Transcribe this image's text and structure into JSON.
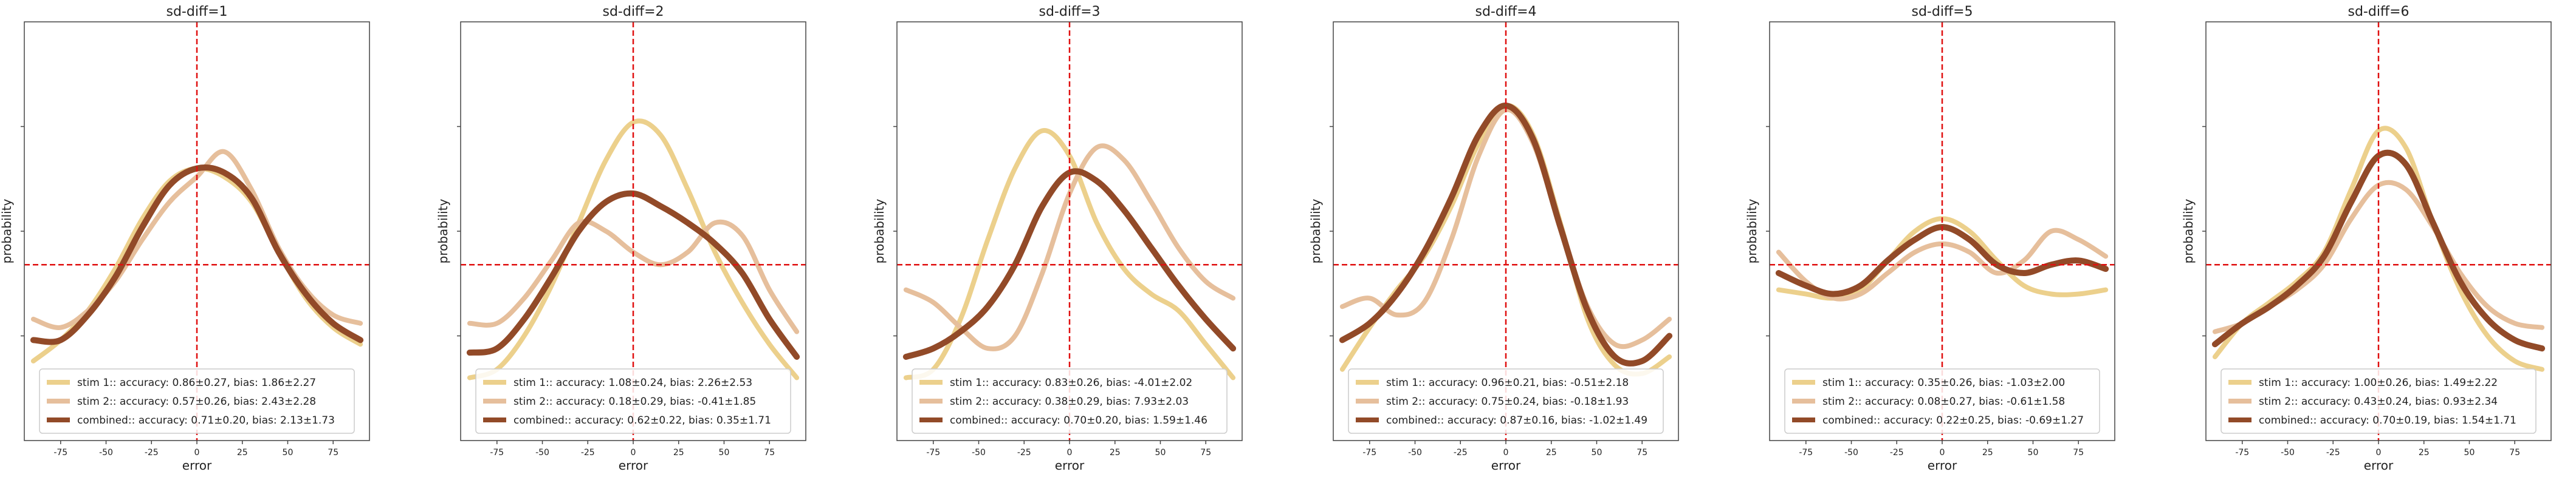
{
  "figure": {
    "colors": {
      "stim1": "#ecd08c",
      "stim2": "#e6bf9c",
      "combined": "#924a28",
      "reference": "#e01010",
      "axes": "#444444"
    }
  },
  "chart_data": [
    {
      "type": "line",
      "title": "sd-diff=1",
      "xlabel": "error",
      "ylabel": "probability",
      "xlim": [
        -95,
        95
      ],
      "x_ticks": [
        -75,
        -50,
        -25,
        0,
        25,
        50,
        75
      ],
      "ylim": [
        0,
        1
      ],
      "y_reference": 0.42,
      "x_reference": 0,
      "legend_position": "lower-center",
      "x": [
        -90,
        -75,
        -60,
        -45,
        -30,
        -15,
        0,
        15,
        30,
        45,
        60,
        75,
        90
      ],
      "series": [
        {
          "name": "stim 1:: accuracy: 0.86±0.27, bias: 1.86±2.27",
          "values": [
            0.19,
            0.24,
            0.31,
            0.41,
            0.53,
            0.62,
            0.65,
            0.63,
            0.57,
            0.45,
            0.34,
            0.27,
            0.23
          ]
        },
        {
          "name": "stim 2:: accuracy: 0.57±0.26, bias: 2.43±2.28",
          "values": [
            0.29,
            0.27,
            0.31,
            0.38,
            0.48,
            0.57,
            0.63,
            0.69,
            0.6,
            0.46,
            0.36,
            0.3,
            0.28
          ]
        },
        {
          "name": "combined:: accuracy: 0.71±0.20, bias: 2.13±1.73",
          "values": [
            0.24,
            0.24,
            0.3,
            0.39,
            0.51,
            0.61,
            0.65,
            0.64,
            0.58,
            0.45,
            0.35,
            0.28,
            0.24
          ]
        }
      ]
    },
    {
      "type": "line",
      "title": "sd-diff=2",
      "xlabel": "error",
      "ylabel": "probability",
      "xlim": [
        -95,
        95
      ],
      "x_ticks": [
        -75,
        -50,
        -25,
        0,
        25,
        50,
        75
      ],
      "ylim": [
        0,
        1
      ],
      "y_reference": 0.42,
      "x_reference": 0,
      "legend_position": "lower-center",
      "x": [
        -90,
        -75,
        -60,
        -45,
        -30,
        -15,
        0,
        15,
        30,
        45,
        60,
        75,
        90
      ],
      "series": [
        {
          "name": "stim 1:: accuracy: 1.08±0.24, bias: 2.26±2.53",
          "values": [
            0.15,
            0.17,
            0.25,
            0.37,
            0.52,
            0.67,
            0.76,
            0.73,
            0.6,
            0.45,
            0.33,
            0.23,
            0.15
          ]
        },
        {
          "name": "stim 2:: accuracy: 0.18±0.29, bias: -0.41±1.85",
          "values": [
            0.28,
            0.28,
            0.34,
            0.43,
            0.52,
            0.5,
            0.45,
            0.42,
            0.45,
            0.52,
            0.49,
            0.36,
            0.26
          ]
        },
        {
          "name": "combined:: accuracy: 0.62±0.22, bias: 0.35±1.71",
          "values": [
            0.21,
            0.22,
            0.29,
            0.39,
            0.5,
            0.57,
            0.59,
            0.56,
            0.52,
            0.47,
            0.4,
            0.29,
            0.2
          ]
        }
      ]
    },
    {
      "type": "line",
      "title": "sd-diff=3",
      "xlabel": "error",
      "ylabel": "probability",
      "xlim": [
        -95,
        95
      ],
      "x_ticks": [
        -75,
        -50,
        -25,
        0,
        25,
        50,
        75
      ],
      "ylim": [
        0,
        1
      ],
      "y_reference": 0.42,
      "x_reference": 0,
      "legend_position": "lower-center",
      "x": [
        -90,
        -75,
        -60,
        -45,
        -30,
        -15,
        0,
        15,
        30,
        45,
        60,
        75,
        90
      ],
      "series": [
        {
          "name": "stim 1:: accuracy: 0.83±0.26, bias: -4.01±2.02",
          "values": [
            0.15,
            0.17,
            0.29,
            0.48,
            0.65,
            0.74,
            0.68,
            0.52,
            0.41,
            0.35,
            0.31,
            0.23,
            0.15
          ]
        },
        {
          "name": "stim 2:: accuracy: 0.38±0.29, bias: 7.93±2.03",
          "values": [
            0.36,
            0.33,
            0.27,
            0.22,
            0.25,
            0.4,
            0.59,
            0.7,
            0.67,
            0.57,
            0.46,
            0.38,
            0.34
          ]
        },
        {
          "name": "combined:: accuracy: 0.70±0.20, bias: 1.59±1.46",
          "values": [
            0.2,
            0.22,
            0.26,
            0.32,
            0.42,
            0.56,
            0.64,
            0.62,
            0.55,
            0.46,
            0.37,
            0.29,
            0.22
          ]
        }
      ]
    },
    {
      "type": "line",
      "title": "sd-diff=4",
      "xlabel": "error",
      "ylabel": "probability",
      "xlim": [
        -95,
        95
      ],
      "x_ticks": [
        -75,
        -50,
        -25,
        0,
        25,
        50,
        75
      ],
      "ylim": [
        0,
        1
      ],
      "y_reference": 0.42,
      "x_reference": 0,
      "legend_position": "lower-center",
      "x": [
        -90,
        -75,
        -60,
        -45,
        -30,
        -15,
        0,
        15,
        30,
        45,
        60,
        75,
        90
      ],
      "series": [
        {
          "name": "stim 1:: accuracy: 0.96±0.21, bias: -0.51±2.18",
          "values": [
            0.17,
            0.27,
            0.36,
            0.44,
            0.56,
            0.71,
            0.8,
            0.73,
            0.52,
            0.29,
            0.18,
            0.16,
            0.2
          ]
        },
        {
          "name": "stim 2:: accuracy: 0.75±0.24, bias: -0.18±1.93",
          "values": [
            0.32,
            0.34,
            0.3,
            0.33,
            0.48,
            0.68,
            0.79,
            0.71,
            0.51,
            0.32,
            0.23,
            0.24,
            0.29
          ]
        },
        {
          "name": "combined:: accuracy: 0.87±0.16, bias: -1.02±1.49",
          "values": [
            0.24,
            0.28,
            0.35,
            0.45,
            0.58,
            0.73,
            0.8,
            0.72,
            0.51,
            0.31,
            0.2,
            0.19,
            0.25
          ]
        }
      ]
    },
    {
      "type": "line",
      "title": "sd-diff=5",
      "xlabel": "error",
      "ylabel": "probability",
      "xlim": [
        -95,
        95
      ],
      "x_ticks": [
        -75,
        -50,
        -25,
        0,
        25,
        50,
        75
      ],
      "ylim": [
        0,
        1
      ],
      "y_reference": 0.42,
      "x_reference": 0,
      "legend_position": "lower-center",
      "x": [
        -90,
        -75,
        -60,
        -45,
        -30,
        -15,
        0,
        15,
        30,
        45,
        60,
        75,
        90
      ],
      "series": [
        {
          "name": "stim 1:: accuracy: 0.35±0.26, bias: -1.03±2.00",
          "values": [
            0.36,
            0.35,
            0.34,
            0.36,
            0.43,
            0.5,
            0.53,
            0.5,
            0.43,
            0.37,
            0.35,
            0.35,
            0.36
          ]
        },
        {
          "name": "stim 2:: accuracy: 0.08±0.27, bias: -0.61±1.58",
          "values": [
            0.45,
            0.38,
            0.34,
            0.35,
            0.4,
            0.45,
            0.47,
            0.45,
            0.4,
            0.43,
            0.5,
            0.48,
            0.44
          ]
        },
        {
          "name": "combined:: accuracy: 0.22±0.25, bias: -0.69±1.27",
          "values": [
            0.4,
            0.37,
            0.35,
            0.37,
            0.43,
            0.48,
            0.51,
            0.48,
            0.42,
            0.4,
            0.42,
            0.43,
            0.41
          ]
        }
      ]
    },
    {
      "type": "line",
      "title": "sd-diff=6",
      "xlabel": "error",
      "ylabel": "probability",
      "xlim": [
        -95,
        95
      ],
      "x_ticks": [
        -75,
        -50,
        -25,
        0,
        25,
        50,
        75
      ],
      "ylim": [
        0,
        1
      ],
      "y_reference": 0.42,
      "x_reference": 0,
      "legend_position": "lower-center",
      "x": [
        -90,
        -75,
        -60,
        -45,
        -30,
        -15,
        0,
        15,
        30,
        45,
        60,
        75,
        90
      ],
      "series": [
        {
          "name": "stim 1:: accuracy: 1.00±0.26, bias: 1.49±2.22",
          "values": [
            0.2,
            0.28,
            0.33,
            0.38,
            0.45,
            0.6,
            0.74,
            0.7,
            0.52,
            0.36,
            0.25,
            0.19,
            0.17
          ]
        },
        {
          "name": "stim 2:: accuracy: 0.43±0.24, bias: 0.93±2.34",
          "values": [
            0.26,
            0.28,
            0.32,
            0.36,
            0.42,
            0.53,
            0.61,
            0.6,
            0.51,
            0.4,
            0.32,
            0.28,
            0.27
          ]
        },
        {
          "name": "combined:: accuracy: 0.70±0.19, bias: 1.54±1.71",
          "values": [
            0.23,
            0.28,
            0.32,
            0.37,
            0.44,
            0.57,
            0.68,
            0.66,
            0.52,
            0.38,
            0.29,
            0.24,
            0.22
          ]
        }
      ]
    }
  ]
}
